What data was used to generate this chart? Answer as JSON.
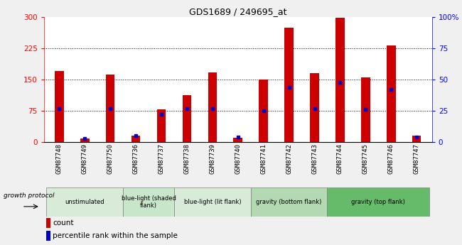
{
  "title": "GDS1689 / 249695_at",
  "samples": [
    "GSM87748",
    "GSM87749",
    "GSM87750",
    "GSM87736",
    "GSM87737",
    "GSM87738",
    "GSM87739",
    "GSM87740",
    "GSM87741",
    "GSM87742",
    "GSM87743",
    "GSM87744",
    "GSM87745",
    "GSM87746",
    "GSM87747"
  ],
  "counts": [
    170,
    8,
    163,
    15,
    78,
    113,
    168,
    10,
    150,
    275,
    165,
    298,
    155,
    232,
    15
  ],
  "percentiles": [
    27,
    3,
    27,
    5,
    22,
    27,
    27,
    4,
    25,
    44,
    27,
    48,
    26,
    42,
    4
  ],
  "groups": [
    {
      "label": "unstimulated",
      "start": 0,
      "end": 3,
      "color": "#d8ead8"
    },
    {
      "label": "blue-light (shaded\nflank)",
      "start": 3,
      "end": 5,
      "color": "#c8e6c9"
    },
    {
      "label": "blue-light (lit flank)",
      "start": 5,
      "end": 8,
      "color": "#d8ead8"
    },
    {
      "label": "gravity (bottom flank)",
      "start": 8,
      "end": 11,
      "color": "#b2d9b2"
    },
    {
      "label": "gravity (top flank)",
      "start": 11,
      "end": 15,
      "color": "#66bb6a"
    }
  ],
  "tick_bg_color": "#d0d0d0",
  "bar_color": "#cc0000",
  "dot_color": "#0000cc",
  "ylim_left": [
    0,
    300
  ],
  "ylim_right": [
    0,
    100
  ],
  "yticks_left": [
    0,
    75,
    150,
    225,
    300
  ],
  "yticks_right": [
    0,
    25,
    50,
    75,
    100
  ],
  "growth_protocol_label": "growth protocol",
  "legend_count": "count",
  "legend_percentile": "percentile rank within the sample",
  "fig_bg": "#f0f0f0"
}
